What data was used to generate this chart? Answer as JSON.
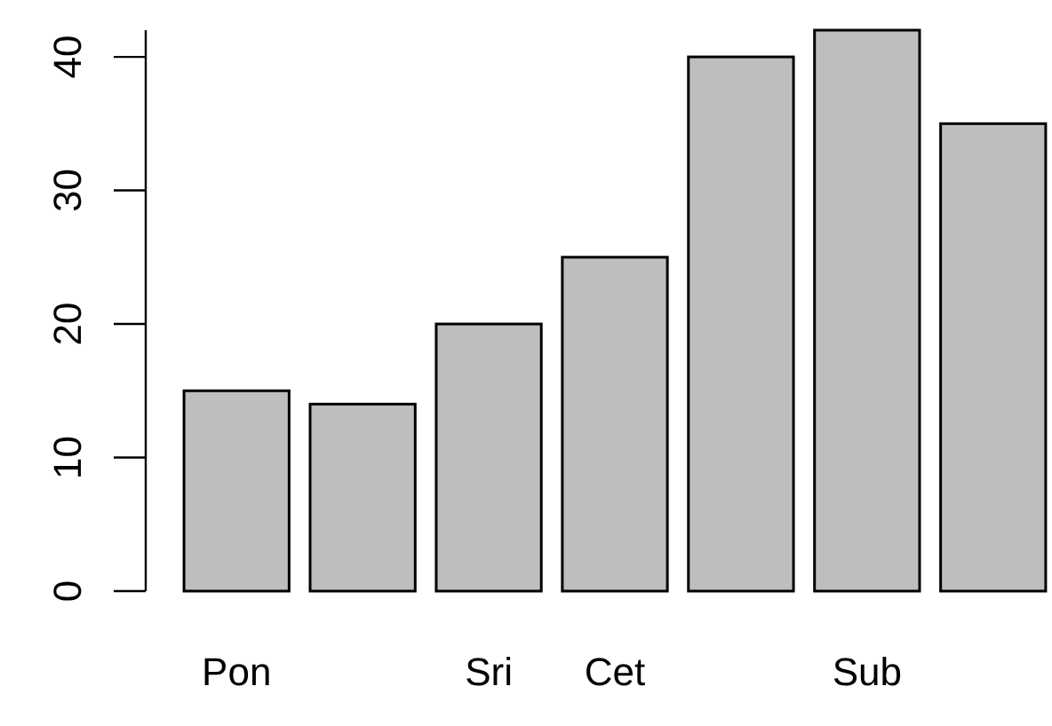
{
  "chart_data": {
    "type": "bar",
    "categories": [
      "Pon",
      null,
      "Sri",
      "Cet",
      null,
      "Sub",
      null
    ],
    "values": [
      15,
      14,
      20,
      25,
      40,
      42,
      35
    ],
    "color": "#bebebe",
    "ylim": [
      0,
      42
    ],
    "yticks": [
      0,
      10,
      20,
      30,
      40
    ],
    "grid": false
  }
}
